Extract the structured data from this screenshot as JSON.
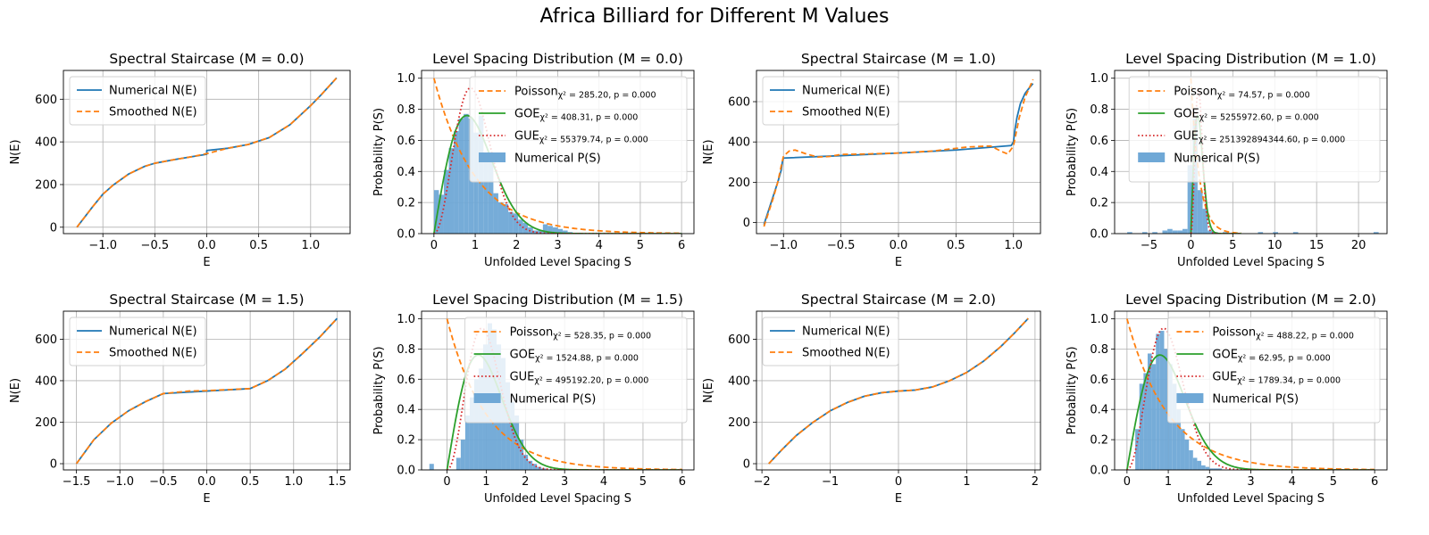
{
  "figure": {
    "title": "Africa Billiard for Different M Values"
  },
  "colors": {
    "numerical": "#1f77b4",
    "poisson": "#ff7f0e",
    "goe": "#2ca02c",
    "gue": "#d62728",
    "hist": "#6fa8d6",
    "grid": "#b0b0b0"
  },
  "chart_data": [
    {
      "type": "line",
      "title": "Spectral Staircase (M = 0.0)",
      "xlabel": "E",
      "ylabel": "N(E)",
      "xlim": [
        -1.38,
        1.38
      ],
      "ylim": [
        -30,
        735
      ],
      "xticks": [
        -1.0,
        -0.5,
        0.0,
        0.5,
        1.0
      ],
      "xtick_labels": [
        "−1.0",
        "−0.5",
        "0.0",
        "0.5",
        "1.0"
      ],
      "yticks": [
        0,
        200,
        400,
        600
      ],
      "ytick_labels": [
        "0",
        "200",
        "400",
        "600"
      ],
      "grid": true,
      "legend": "top-left",
      "legend_entries": [
        {
          "text": "Numerical N(E)",
          "style": "solid"
        },
        {
          "text": "Smoothed N(E)",
          "style": "dashed"
        }
      ],
      "series": [
        {
          "name": "Numerical N(E)",
          "x": [
            -1.25,
            -1.1,
            -1.0,
            -0.9,
            -0.75,
            -0.6,
            -0.5,
            -0.3,
            -0.15,
            0.0,
            0.0,
            0.2,
            0.4,
            0.6,
            0.8,
            1.0,
            1.1,
            1.25
          ],
          "y": [
            0,
            95,
            155,
            198,
            250,
            285,
            300,
            318,
            330,
            342,
            360,
            370,
            388,
            420,
            480,
            570,
            620,
            700
          ]
        },
        {
          "name": "Smoothed N(E)",
          "x": [
            -1.25,
            -1.1,
            -1.0,
            -0.9,
            -0.75,
            -0.6,
            -0.5,
            -0.3,
            -0.15,
            0.0,
            0.2,
            0.4,
            0.6,
            0.8,
            1.0,
            1.1,
            1.25
          ],
          "y": [
            0,
            95,
            155,
            198,
            250,
            285,
            300,
            318,
            330,
            345,
            370,
            388,
            420,
            480,
            570,
            620,
            700
          ]
        }
      ]
    },
    {
      "type": "bar+line",
      "title": "Level Spacing Distribution (M = 0.0)",
      "xlabel": "Unfolded Level Spacing S",
      "ylabel": "Probability P(S)",
      "xlim": [
        -0.3,
        6.3
      ],
      "ylim": [
        0,
        1.05
      ],
      "xticks": [
        0,
        1,
        2,
        3,
        4,
        5,
        6
      ],
      "xtick_labels": [
        "0",
        "1",
        "2",
        "3",
        "4",
        "5",
        "6"
      ],
      "yticks": [
        0,
        0.2,
        0.4,
        0.6,
        0.8,
        1.0
      ],
      "ytick_labels": [
        "0.0",
        "0.2",
        "0.4",
        "0.6",
        "0.8",
        "1.0"
      ],
      "grid": true,
      "legend": "top-right",
      "legend_entries": [
        {
          "text": "Poisson",
          "stat": "χ² = 285.20,  p = 0.000",
          "style": "dashed-orange"
        },
        {
          "text": "GOE",
          "stat": "χ² = 408.31,  p = 0.000",
          "style": "solid-green"
        },
        {
          "text": "GUE",
          "stat": "χ² = 55379.74,  p = 0.000",
          "style": "dotted-red"
        },
        {
          "text": "Numerical P(S)",
          "style": "patch"
        }
      ],
      "hist": {
        "start": 0.0,
        "width": 0.12,
        "values": [
          0.28,
          0.25,
          0.41,
          0.55,
          0.66,
          0.74,
          0.77,
          0.74,
          0.65,
          0.76,
          0.46,
          0.46,
          0.26,
          0.2,
          0.19,
          0.14,
          0.13,
          0.09,
          0.07,
          0.04,
          0.02,
          0.02,
          0.06,
          0.05,
          0.04,
          0.03,
          0.02,
          0.01
        ]
      },
      "curves": [
        "poisson",
        "goe",
        "gue"
      ],
      "curve_xmax": 6
    },
    {
      "type": "line",
      "title": "Spectral Staircase (M = 1.0)",
      "xlabel": "E",
      "ylabel": "N(E)",
      "xlim": [
        -1.235,
        1.235
      ],
      "ylim": [
        -55,
        755
      ],
      "xticks": [
        -1.0,
        -0.5,
        0.0,
        0.5,
        1.0
      ],
      "xtick_labels": [
        "−1.0",
        "−0.5",
        "0.0",
        "0.5",
        "1.0"
      ],
      "yticks": [
        0,
        200,
        400,
        600
      ],
      "ytick_labels": [
        "0",
        "200",
        "400",
        "600"
      ],
      "grid": true,
      "legend": "top-left",
      "legend_entries": [
        {
          "text": "Numerical N(E)",
          "style": "solid"
        },
        {
          "text": "Smoothed N(E)",
          "style": "dashed"
        }
      ],
      "series": [
        {
          "name": "Numerical N(E)",
          "x": [
            -1.17,
            -1.13,
            -1.09,
            -1.05,
            -1.02,
            -1.01,
            -1.0,
            -0.5,
            0.0,
            0.5,
            0.98,
            1.0,
            1.01,
            1.03,
            1.06,
            1.1,
            1.14,
            1.17
          ],
          "y": [
            -10,
            60,
            130,
            200,
            260,
            300,
            320,
            332,
            345,
            360,
            382,
            400,
            450,
            520,
            590,
            640,
            670,
            690
          ]
        },
        {
          "name": "Smoothed N(E)",
          "x": [
            -1.17,
            -1.13,
            -1.09,
            -1.05,
            -1.02,
            -1.0,
            -0.95,
            -0.9,
            -0.8,
            -0.7,
            -0.6,
            -0.5,
            -0.3,
            0.0,
            0.3,
            0.6,
            0.8,
            0.9,
            0.95,
            1.0,
            1.05,
            1.1,
            1.17
          ],
          "y": [
            -20,
            50,
            120,
            200,
            280,
            330,
            355,
            360,
            340,
            325,
            328,
            338,
            340,
            345,
            355,
            375,
            380,
            352,
            340,
            380,
            520,
            620,
            710
          ]
        }
      ]
    },
    {
      "type": "bar+line",
      "title": "Level Spacing Distribution (M = 1.0)",
      "xlabel": "Unfolded Level Spacing S",
      "ylabel": "Probability P(S)",
      "xlim": [
        -9.1,
        23.4
      ],
      "ylim": [
        0,
        1.05
      ],
      "xticks": [
        -5,
        0,
        5,
        10,
        15,
        20
      ],
      "xtick_labels": [
        "−5",
        "0",
        "5",
        "10",
        "15",
        "20"
      ],
      "yticks": [
        0,
        0.2,
        0.4,
        0.6,
        0.8,
        1.0
      ],
      "ytick_labels": [
        "0.0",
        "0.2",
        "0.4",
        "0.6",
        "0.8",
        "1.0"
      ],
      "grid": true,
      "legend": "top-right",
      "legend_entries": [
        {
          "text": "Poisson",
          "stat": "χ² = 74.57,  p = 0.000",
          "style": "dashed-orange"
        },
        {
          "text": "GOE",
          "stat": "χ² = 5255972.60,  p = 0.000",
          "style": "solid-green"
        },
        {
          "text": "GUE",
          "stat": "χ² = 251392894344.60,  p = 0.000",
          "style": "dotted-red"
        },
        {
          "text": "Numerical P(S)",
          "style": "patch"
        }
      ],
      "hist": {
        "start": -7.6,
        "width": 0.6,
        "values": [
          0.01,
          0,
          0,
          0.01,
          0,
          0.01,
          0,
          0.02,
          0.03,
          0.02,
          0.02,
          0.03,
          0.44,
          0.74,
          0.28,
          0.16,
          0.02,
          0.01,
          0,
          0.01,
          0,
          0,
          0,
          0,
          0,
          0,
          0.01,
          0,
          0,
          0.01,
          0,
          0,
          0,
          0.01,
          0,
          0,
          0,
          0,
          0,
          0,
          0,
          0,
          0,
          0,
          0,
          0,
          0,
          0,
          0,
          0.01,
          0
        ]
      },
      "curves": [
        "poisson",
        "goe",
        "gue"
      ],
      "curve_xmax": 6
    },
    {
      "type": "line",
      "title": "Spectral Staircase (M = 1.5)",
      "xlabel": "E",
      "ylabel": "N(E)",
      "xlim": [
        -1.65,
        1.65
      ],
      "ylim": [
        -30,
        735
      ],
      "xticks": [
        -1.5,
        -1.0,
        -0.5,
        0.0,
        0.5,
        1.0,
        1.5
      ],
      "xtick_labels": [
        "−1.5",
        "−1.0",
        "−0.5",
        "0.0",
        "0.5",
        "1.0",
        "1.5"
      ],
      "yticks": [
        0,
        200,
        400,
        600
      ],
      "ytick_labels": [
        "0",
        "200",
        "400",
        "600"
      ],
      "grid": true,
      "legend": "top-left",
      "legend_entries": [
        {
          "text": "Numerical N(E)",
          "style": "solid"
        },
        {
          "text": "Smoothed N(E)",
          "style": "dashed"
        }
      ],
      "series": [
        {
          "name": "Numerical N(E)",
          "x": [
            -1.5,
            -1.3,
            -1.1,
            -0.9,
            -0.7,
            -0.5,
            0.0,
            0.5,
            0.7,
            0.9,
            1.1,
            1.3,
            1.5
          ],
          "y": [
            0,
            115,
            195,
            255,
            300,
            338,
            350,
            362,
            400,
            455,
            530,
            610,
            700
          ]
        },
        {
          "name": "Smoothed N(E)",
          "x": [
            -1.5,
            -1.3,
            -1.1,
            -0.9,
            -0.7,
            -0.5,
            -0.2,
            0.0,
            0.2,
            0.5,
            0.7,
            0.9,
            1.1,
            1.3,
            1.5
          ],
          "y": [
            0,
            115,
            195,
            255,
            300,
            338,
            350,
            352,
            356,
            362,
            400,
            455,
            530,
            610,
            700
          ]
        }
      ]
    },
    {
      "type": "bar+line",
      "title": "Level Spacing Distribution (M = 1.5)",
      "xlabel": "Unfolded Level Spacing S",
      "ylabel": "Probability P(S)",
      "xlim": [
        -0.65,
        6.3
      ],
      "ylim": [
        0,
        1.05
      ],
      "xticks": [
        0,
        1,
        2,
        3,
        4,
        5,
        6
      ],
      "xtick_labels": [
        "0",
        "1",
        "2",
        "3",
        "4",
        "5",
        "6"
      ],
      "yticks": [
        0,
        0.2,
        0.4,
        0.6,
        0.8,
        1.0
      ],
      "ytick_labels": [
        "0.0",
        "0.2",
        "0.4",
        "0.6",
        "0.8",
        "1.0"
      ],
      "grid": true,
      "legend": "top-right",
      "legend_entries": [
        {
          "text": "Poisson",
          "stat": "χ² = 528.35,  p = 0.000",
          "style": "dashed-orange"
        },
        {
          "text": "GOE",
          "stat": "χ² = 1524.88,  p = 0.000",
          "style": "solid-green"
        },
        {
          "text": "GUE",
          "stat": "χ² = 495192.20,  p = 0.000",
          "style": "dotted-red"
        },
        {
          "text": "Numerical P(S)",
          "style": "patch"
        }
      ],
      "hist": {
        "start": -0.45,
        "width": 0.1143,
        "values": [
          0.04,
          0,
          0,
          0,
          0,
          0,
          0.08,
          0.2,
          0.36,
          0.48,
          0.6,
          0.67,
          0.83,
          0.97,
          0.93,
          0.83,
          0.74,
          0.58,
          0.45,
          0.36,
          0.2,
          0.1,
          0.06,
          0.04,
          0.02,
          0.01
        ]
      },
      "curves": [
        "poisson",
        "goe",
        "gue"
      ],
      "curve_xmax": 6
    },
    {
      "type": "line",
      "title": "Spectral Staircase (M = 2.0)",
      "xlabel": "E",
      "ylabel": "N(E)",
      "xlim": [
        -2.08,
        2.08
      ],
      "ylim": [
        -30,
        735
      ],
      "xticks": [
        -2,
        -1,
        0,
        1,
        2
      ],
      "xtick_labels": [
        "−2",
        "−1",
        "0",
        "1",
        "2"
      ],
      "yticks": [
        0,
        200,
        400,
        600
      ],
      "ytick_labels": [
        "0",
        "200",
        "400",
        "600"
      ],
      "grid": true,
      "legend": "top-left",
      "legend_entries": [
        {
          "text": "Numerical N(E)",
          "style": "solid"
        },
        {
          "text": "Smoothed N(E)",
          "style": "dashed"
        }
      ],
      "series": [
        {
          "name": "Numerical N(E)",
          "x": [
            -1.9,
            -1.7,
            -1.5,
            -1.25,
            -1.0,
            -0.75,
            -0.5,
            -0.25,
            0.0,
            0.25,
            0.5,
            0.75,
            1.0,
            1.25,
            1.5,
            1.7,
            1.9
          ],
          "y": [
            0,
            70,
            135,
            200,
            255,
            295,
            325,
            342,
            350,
            355,
            370,
            400,
            440,
            495,
            565,
            630,
            700
          ]
        },
        {
          "name": "Smoothed N(E)",
          "x": [
            -1.9,
            -1.7,
            -1.5,
            -1.25,
            -1.0,
            -0.75,
            -0.5,
            -0.25,
            0.0,
            0.25,
            0.5,
            0.75,
            1.0,
            1.25,
            1.5,
            1.7,
            1.9
          ],
          "y": [
            0,
            70,
            135,
            200,
            255,
            295,
            325,
            342,
            350,
            355,
            370,
            400,
            440,
            495,
            565,
            630,
            700
          ]
        }
      ]
    },
    {
      "type": "bar+line",
      "title": "Level Spacing Distribution (M = 2.0)",
      "xlabel": "Unfolded Level Spacing S",
      "ylabel": "Probability P(S)",
      "xlim": [
        -0.3,
        6.3
      ],
      "ylim": [
        0,
        1.05
      ],
      "xticks": [
        0,
        1,
        2,
        3,
        4,
        5,
        6
      ],
      "xtick_labels": [
        "0",
        "1",
        "2",
        "3",
        "4",
        "5",
        "6"
      ],
      "yticks": [
        0,
        0.2,
        0.4,
        0.6,
        0.8,
        1.0
      ],
      "ytick_labels": [
        "0.0",
        "0.2",
        "0.4",
        "0.6",
        "0.8",
        "1.0"
      ],
      "grid": true,
      "legend": "top-right",
      "legend_entries": [
        {
          "text": "Poisson",
          "stat": "χ² = 488.22,  p = 0.000",
          "style": "dashed-orange"
        },
        {
          "text": "GOE",
          "stat": "χ² = 62.95,  p = 0.000",
          "style": "solid-green"
        },
        {
          "text": "GUE",
          "stat": "χ² = 1789.34,  p = 0.000",
          "style": "dotted-red"
        },
        {
          "text": "Numerical P(S)",
          "style": "patch"
        }
      ],
      "hist": {
        "start": 0.2,
        "width": 0.1,
        "values": [
          0.27,
          0.57,
          0.64,
          0.77,
          0.7,
          0.9,
          0.92,
          0.8,
          0.7,
          0.57,
          0.4,
          0.27,
          0.2,
          0.13,
          0.08,
          0.06,
          0.03,
          0.02,
          0.01,
          0.01,
          0.01
        ]
      },
      "curves": [
        "poisson",
        "goe",
        "gue"
      ],
      "curve_xmax": 6
    }
  ]
}
